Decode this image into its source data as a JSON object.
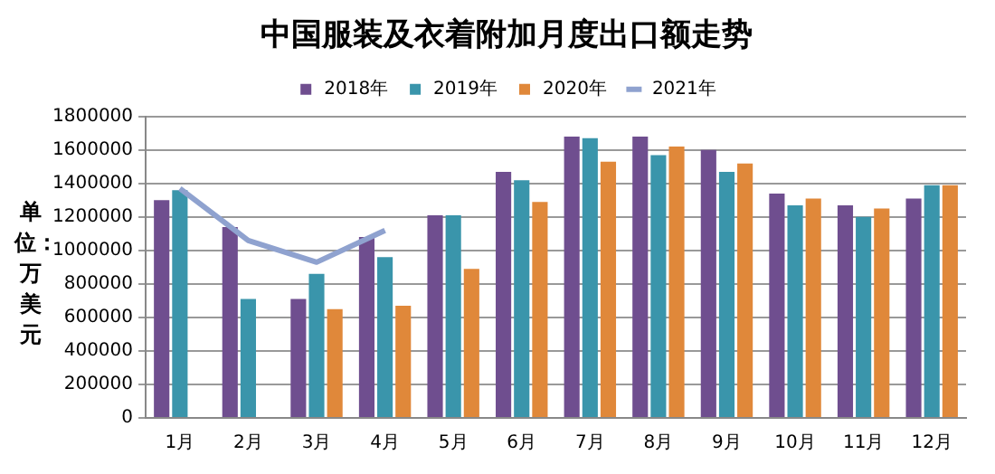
{
  "chart_data": {
    "type": "bar",
    "title": "中国服装及衣着附加月度出口额走势",
    "ylabel": "单位：万美元",
    "categories": [
      "1月",
      "2月",
      "3月",
      "4月",
      "5月",
      "6月",
      "7月",
      "8月",
      "9月",
      "10月",
      "11月",
      "12月"
    ],
    "series": [
      {
        "name": "2018年",
        "color": "#6f4e8f",
        "values": [
          1300000,
          1140000,
          710000,
          1080000,
          1210000,
          1470000,
          1680000,
          1680000,
          1600000,
          1340000,
          1270000,
          1310000
        ]
      },
      {
        "name": "2019年",
        "color": "#3a95ab",
        "values": [
          1360000,
          710000,
          860000,
          960000,
          1210000,
          1420000,
          1670000,
          1570000,
          1470000,
          1270000,
          1200000,
          1390000
        ]
      },
      {
        "name": "2020年",
        "color": "#e0883a",
        "values": [
          null,
          null,
          650000,
          670000,
          890000,
          1290000,
          1530000,
          1620000,
          1520000,
          1310000,
          1250000,
          1390000
        ]
      },
      {
        "name": "2021年",
        "type": "line",
        "color": "#8fa2cf",
        "values": [
          1370000,
          1060000,
          930000,
          1120000,
          null,
          null,
          null,
          null,
          null,
          null,
          null,
          null
        ]
      }
    ],
    "ylim": [
      0,
      1800000
    ],
    "yticks": [
      0,
      200000,
      400000,
      600000,
      800000,
      1000000,
      1200000,
      1400000,
      1600000,
      1800000
    ],
    "grid": "y",
    "legend": "top",
    "marker": "none"
  }
}
